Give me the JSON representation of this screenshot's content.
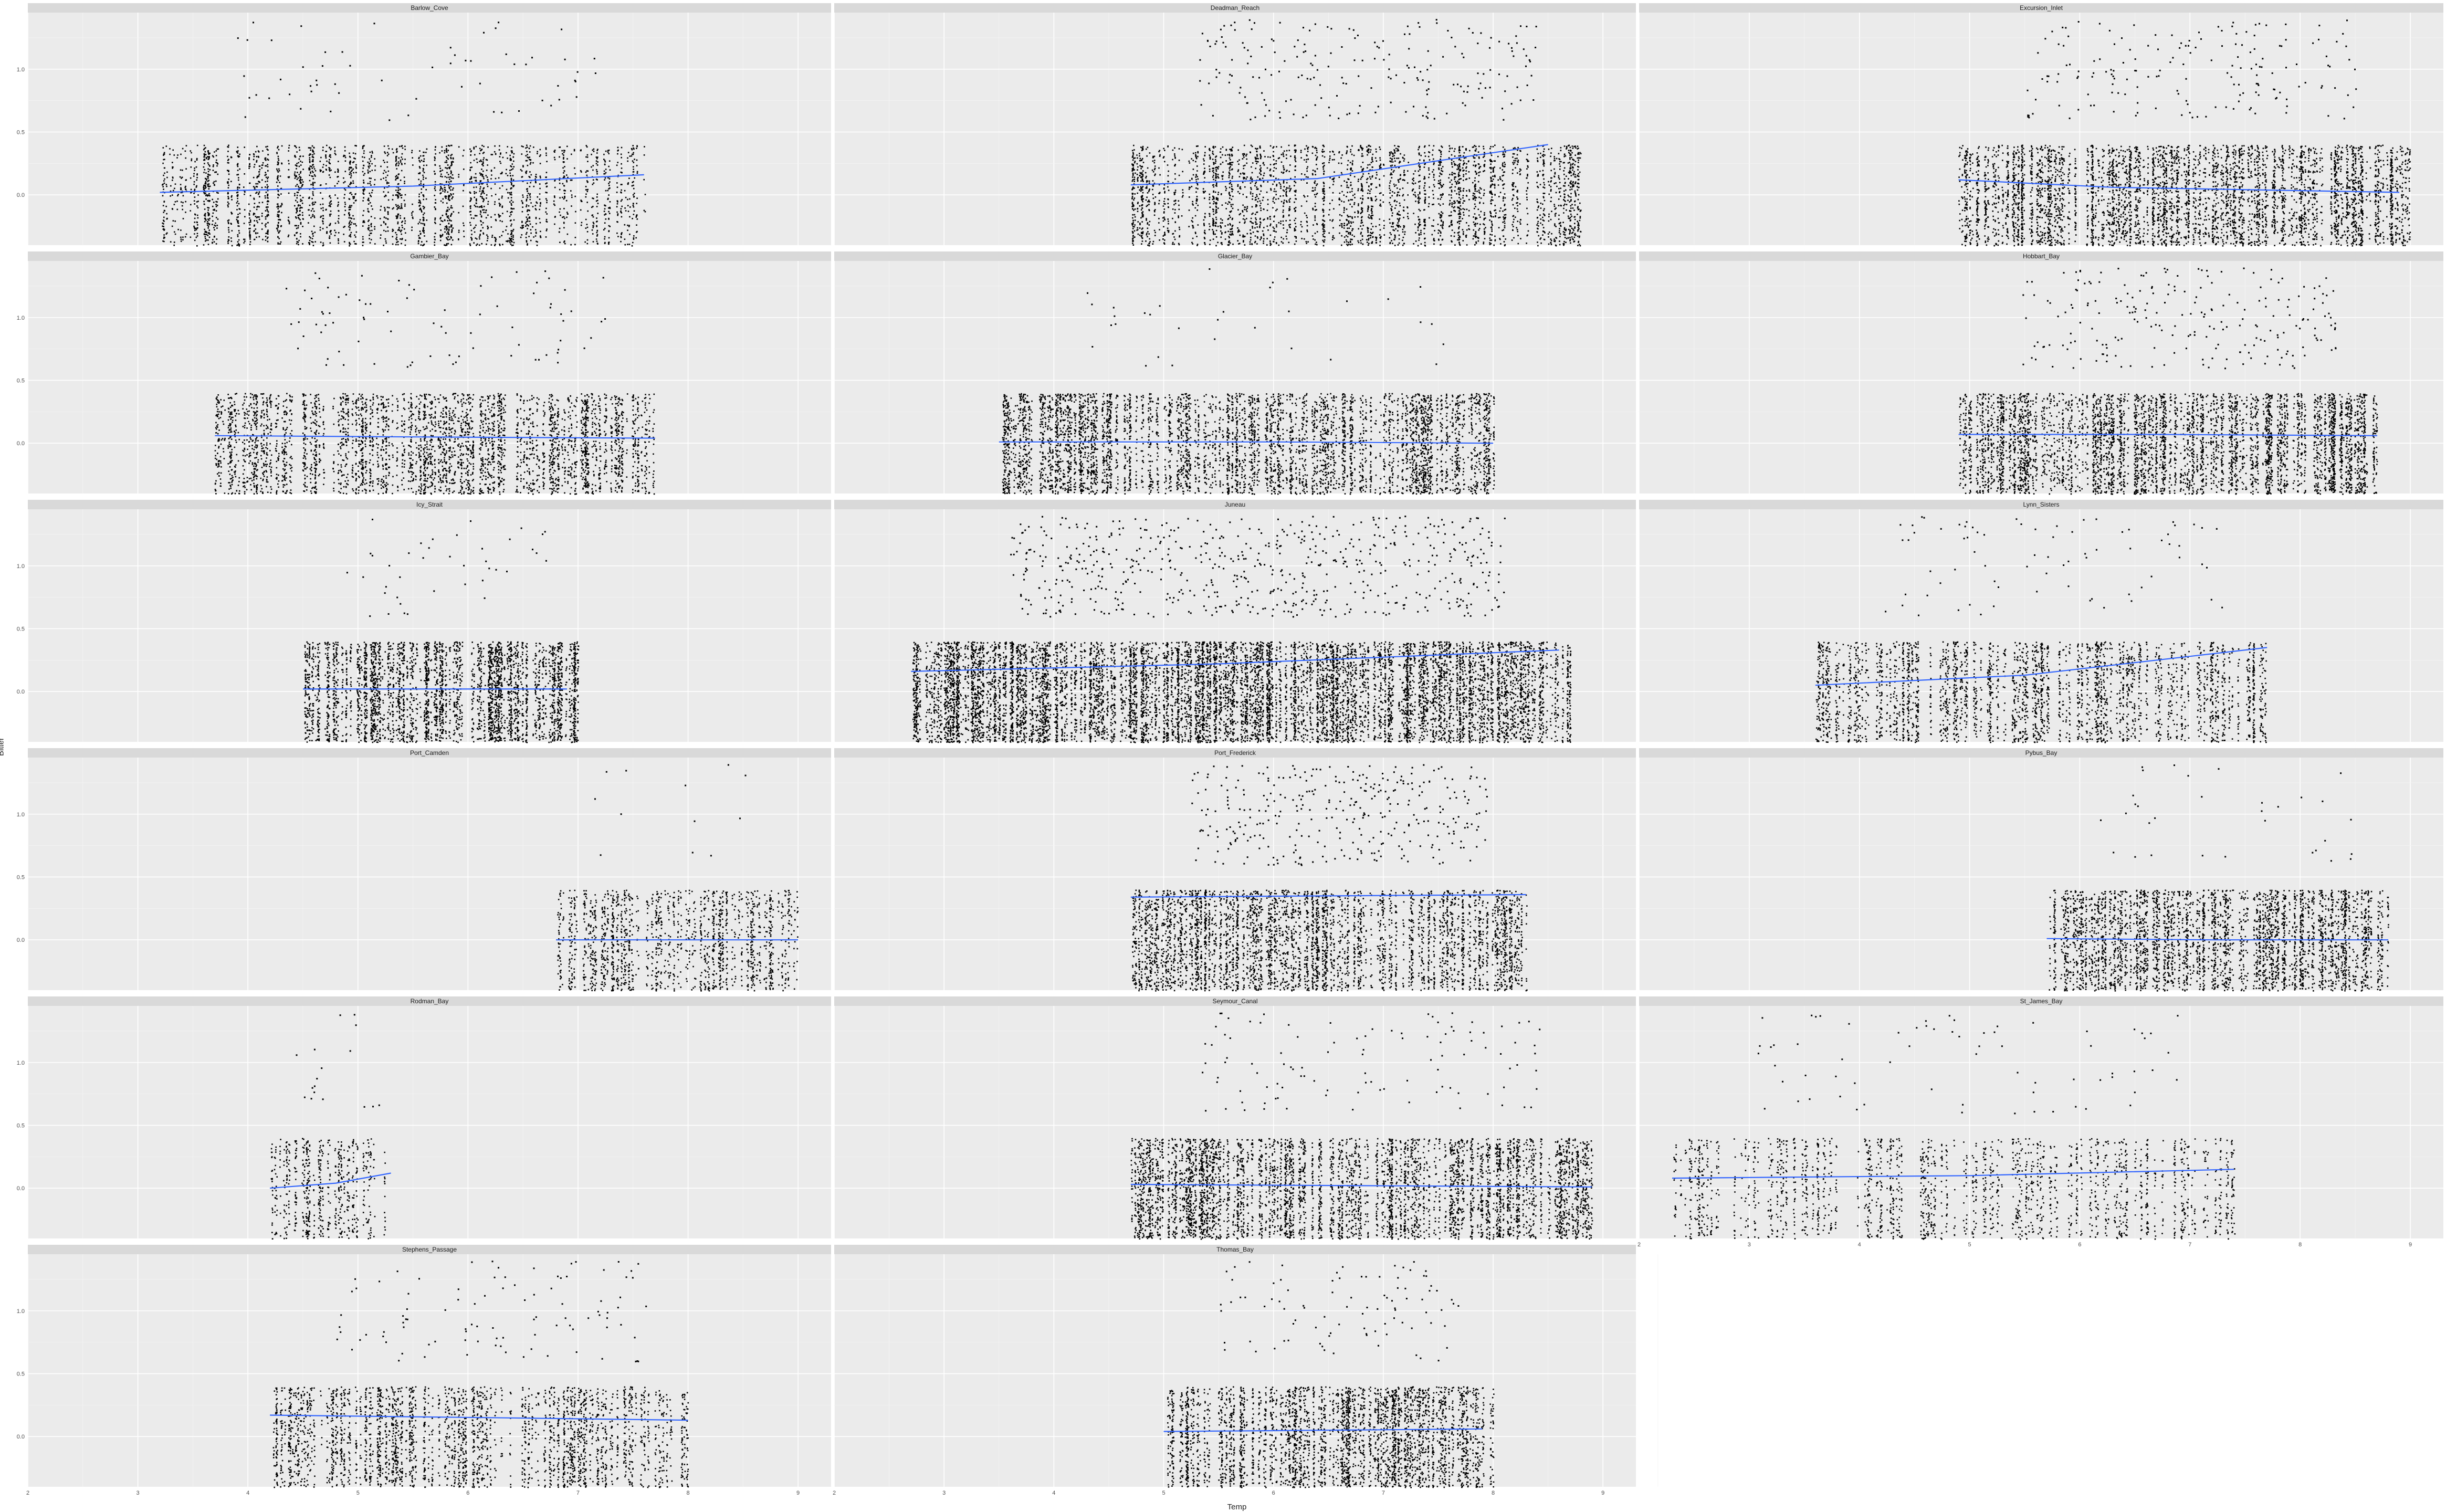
{
  "chart_data": {
    "type": "scatter",
    "facet_layout": "wrap",
    "xlabel": "Temp",
    "ylabel": "Bitter",
    "xlim": [
      2,
      9.3
    ],
    "ylim": [
      -0.4,
      1.45
    ],
    "x_ticks": [
      2,
      3,
      4,
      5,
      6,
      7,
      8,
      9
    ],
    "y_ticks": [
      0.0,
      0.5,
      1.0
    ],
    "y_tick_labels": [
      "0.0",
      "0.5",
      "1.0"
    ],
    "grid": true,
    "legend": "none",
    "point_color": "#000000",
    "trend_color": "#3366FF",
    "panel_background": "#EBEBEB",
    "strip_background": "#D9D9D9",
    "panels": [
      {
        "name": "Barlow_Cove",
        "xrange": [
          3.2,
          7.6
        ],
        "density": 0.55,
        "upper_density": 0.05,
        "trend": [
          [
            3.2,
            0.02
          ],
          [
            5.5,
            0.07
          ],
          [
            7.6,
            0.16
          ]
        ]
      },
      {
        "name": "Deadman_Reach",
        "xrange": [
          4.7,
          8.8
        ],
        "density": 0.65,
        "upper_density": 0.22,
        "trend": [
          [
            4.7,
            0.08
          ],
          [
            6.4,
            0.13
          ],
          [
            8.5,
            0.4
          ]
        ]
      },
      {
        "name": "Excursion_Inlet",
        "xrange": [
          4.9,
          9.0
        ],
        "density": 0.8,
        "upper_density": 0.18,
        "trend": [
          [
            4.9,
            0.12
          ],
          [
            6.3,
            0.06
          ],
          [
            8.9,
            0.02
          ]
        ]
      },
      {
        "name": "Gambier_Bay",
        "xrange": [
          3.7,
          7.7
        ],
        "density": 0.7,
        "upper_density": 0.08,
        "trend": [
          [
            3.7,
            0.06
          ],
          [
            5.5,
            0.05
          ],
          [
            7.7,
            0.04
          ]
        ]
      },
      {
        "name": "Glacier_Bay",
        "xrange": [
          3.5,
          8.0
        ],
        "density": 0.75,
        "upper_density": 0.02,
        "trend": [
          [
            3.5,
            0.01
          ],
          [
            6.0,
            0.01
          ],
          [
            8.0,
            0.0
          ]
        ]
      },
      {
        "name": "Hobbart_Bay",
        "xrange": [
          4.9,
          8.7
        ],
        "density": 0.85,
        "upper_density": 0.25,
        "trend": [
          [
            4.9,
            0.07
          ],
          [
            6.7,
            0.07
          ],
          [
            8.7,
            0.06
          ]
        ]
      },
      {
        "name": "Icy_Strait",
        "xrange": [
          4.5,
          7.0
        ],
        "density": 0.9,
        "upper_density": 0.05,
        "trend": [
          [
            4.5,
            0.02
          ],
          [
            5.8,
            0.02
          ],
          [
            6.9,
            0.02
          ]
        ]
      },
      {
        "name": "Juneau",
        "xrange": [
          2.7,
          8.7
        ],
        "density": 0.98,
        "upper_density": 0.45,
        "trend": [
          [
            2.7,
            0.16
          ],
          [
            5.5,
            0.22
          ],
          [
            8.6,
            0.33
          ]
        ]
      },
      {
        "name": "Lynn_Sisters",
        "xrange": [
          3.6,
          7.7
        ],
        "density": 0.6,
        "upper_density": 0.07,
        "trend": [
          [
            3.6,
            0.05
          ],
          [
            5.5,
            0.13
          ],
          [
            7.7,
            0.35
          ]
        ]
      },
      {
        "name": "Port_Camden",
        "xrange": [
          6.8,
          9.0
        ],
        "density": 0.6,
        "upper_density": 0.0,
        "trend": [
          [
            6.8,
            0.0
          ],
          [
            7.9,
            0.0
          ],
          [
            9.0,
            0.0
          ]
        ]
      },
      {
        "name": "Port_Frederick",
        "xrange": [
          4.7,
          8.3
        ],
        "density": 0.8,
        "upper_density": 0.4,
        "trend": [
          [
            4.7,
            0.34
          ],
          [
            6.5,
            0.35
          ],
          [
            8.3,
            0.36
          ]
        ]
      },
      {
        "name": "Pybus_Bay",
        "xrange": [
          5.7,
          8.8
        ],
        "density": 0.8,
        "upper_density": 0.03,
        "trend": [
          [
            5.7,
            0.01
          ],
          [
            7.2,
            0.0
          ],
          [
            8.8,
            0.0
          ]
        ]
      },
      {
        "name": "Rodman_Bay",
        "xrange": [
          4.2,
          5.3
        ],
        "density": 0.5,
        "upper_density": 0.02,
        "trend": [
          [
            4.2,
            0.0
          ],
          [
            4.8,
            0.04
          ],
          [
            5.3,
            0.12
          ]
        ]
      },
      {
        "name": "Seymour_Canal",
        "xrange": [
          4.7,
          8.9
        ],
        "density": 0.8,
        "upper_density": 0.1,
        "trend": [
          [
            4.7,
            0.03
          ],
          [
            6.8,
            0.02
          ],
          [
            8.9,
            0.01
          ]
        ]
      },
      {
        "name": "St_James_Bay",
        "xrange": [
          2.3,
          7.4
        ],
        "density": 0.4,
        "upper_density": 0.05,
        "trend": [
          [
            2.3,
            0.08
          ],
          [
            5.0,
            0.1
          ],
          [
            7.4,
            0.15
          ]
        ]
      },
      {
        "name": "Stephens_Passage",
        "xrange": [
          4.2,
          8.0
        ],
        "density": 0.6,
        "upper_density": 0.1,
        "trend": [
          [
            4.2,
            0.17
          ],
          [
            6.2,
            0.15
          ],
          [
            8.0,
            0.13
          ]
        ]
      },
      {
        "name": "Thomas_Bay",
        "xrange": [
          5.0,
          8.0
        ],
        "density": 0.8,
        "upper_density": 0.12,
        "trend": [
          [
            5.0,
            0.04
          ],
          [
            6.5,
            0.05
          ],
          [
            7.9,
            0.06
          ]
        ]
      }
    ]
  }
}
